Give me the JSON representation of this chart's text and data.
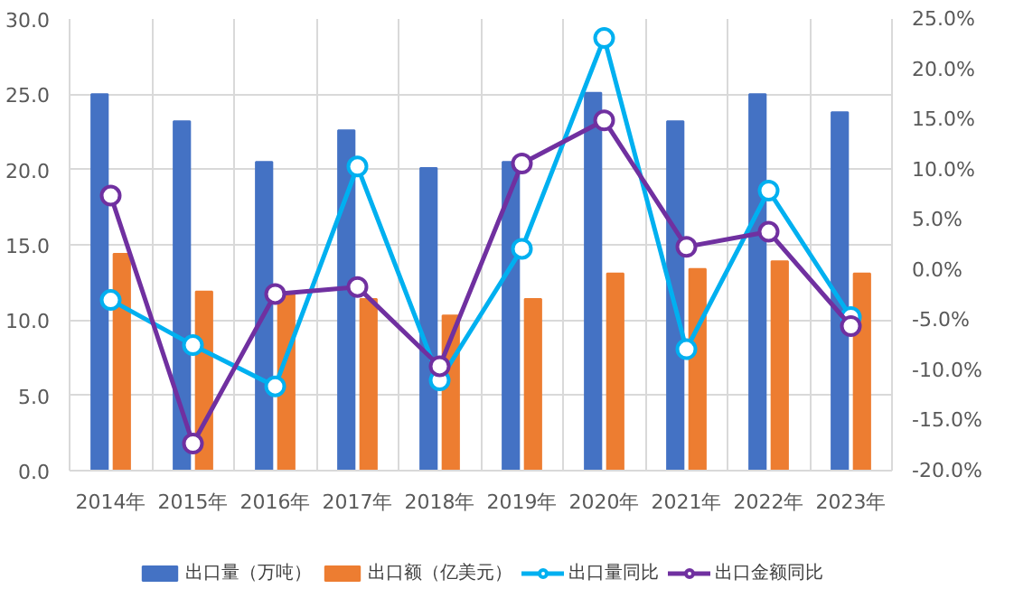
{
  "chart_data": {
    "type": "bar",
    "categories": [
      "2014年",
      "2015年",
      "2016年",
      "2017年",
      "2018年",
      "2019年",
      "2020年",
      "2021年",
      "2022年",
      "2023年"
    ],
    "series": [
      {
        "name": "出口量（万吨）",
        "color": "#4472c4",
        "values": [
          25.0,
          23.2,
          20.5,
          22.6,
          20.1,
          20.5,
          25.1,
          23.2,
          25.0,
          23.8
        ]
      },
      {
        "name": "出口额（亿美元）",
        "color": "#ed7d31",
        "values": [
          14.4,
          11.9,
          11.7,
          11.4,
          10.3,
          11.4,
          13.1,
          13.4,
          13.9,
          13.1
        ]
      },
      {
        "name": "出口量同比",
        "type": "line",
        "axis": "y2",
        "color": "#00b0f0",
        "values": [
          -3.0,
          -7.5,
          -11.6,
          10.3,
          -11.0,
          2.1,
          23.1,
          -7.9,
          7.9,
          -4.7
        ]
      },
      {
        "name": "出口金额同比",
        "type": "line",
        "axis": "y2",
        "color": "#7030a0",
        "values": [
          7.4,
          -17.3,
          -2.4,
          -1.7,
          -9.6,
          10.6,
          14.9,
          2.3,
          3.8,
          -5.6
        ]
      }
    ],
    "ylim": [
      0,
      30
    ],
    "yticks": [
      {
        "value": 0,
        "label": "0.0"
      },
      {
        "value": 5,
        "label": "5.0"
      },
      {
        "value": 10,
        "label": "10.0"
      },
      {
        "value": 15,
        "label": "15.0"
      },
      {
        "value": 20,
        "label": "20.0"
      },
      {
        "value": 25,
        "label": "25.0"
      },
      {
        "value": 30,
        "label": "30.0"
      }
    ],
    "y2lim": [
      -20,
      25
    ],
    "y2ticks": [
      {
        "value": -20,
        "label": "-20.0%"
      },
      {
        "value": -15,
        "label": "-15.0%"
      },
      {
        "value": -10,
        "label": "-10.0%"
      },
      {
        "value": -5,
        "label": "-5.0%"
      },
      {
        "value": 0,
        "label": "0.0%"
      },
      {
        "value": 5,
        "label": "5.0%"
      },
      {
        "value": 10,
        "label": "10.0%"
      },
      {
        "value": 15,
        "label": "15.0%"
      },
      {
        "value": 20,
        "label": "20.0%"
      },
      {
        "value": 25,
        "label": "25.0%"
      }
    ],
    "grid": true,
    "legend": "bottom",
    "marker": "circle"
  }
}
